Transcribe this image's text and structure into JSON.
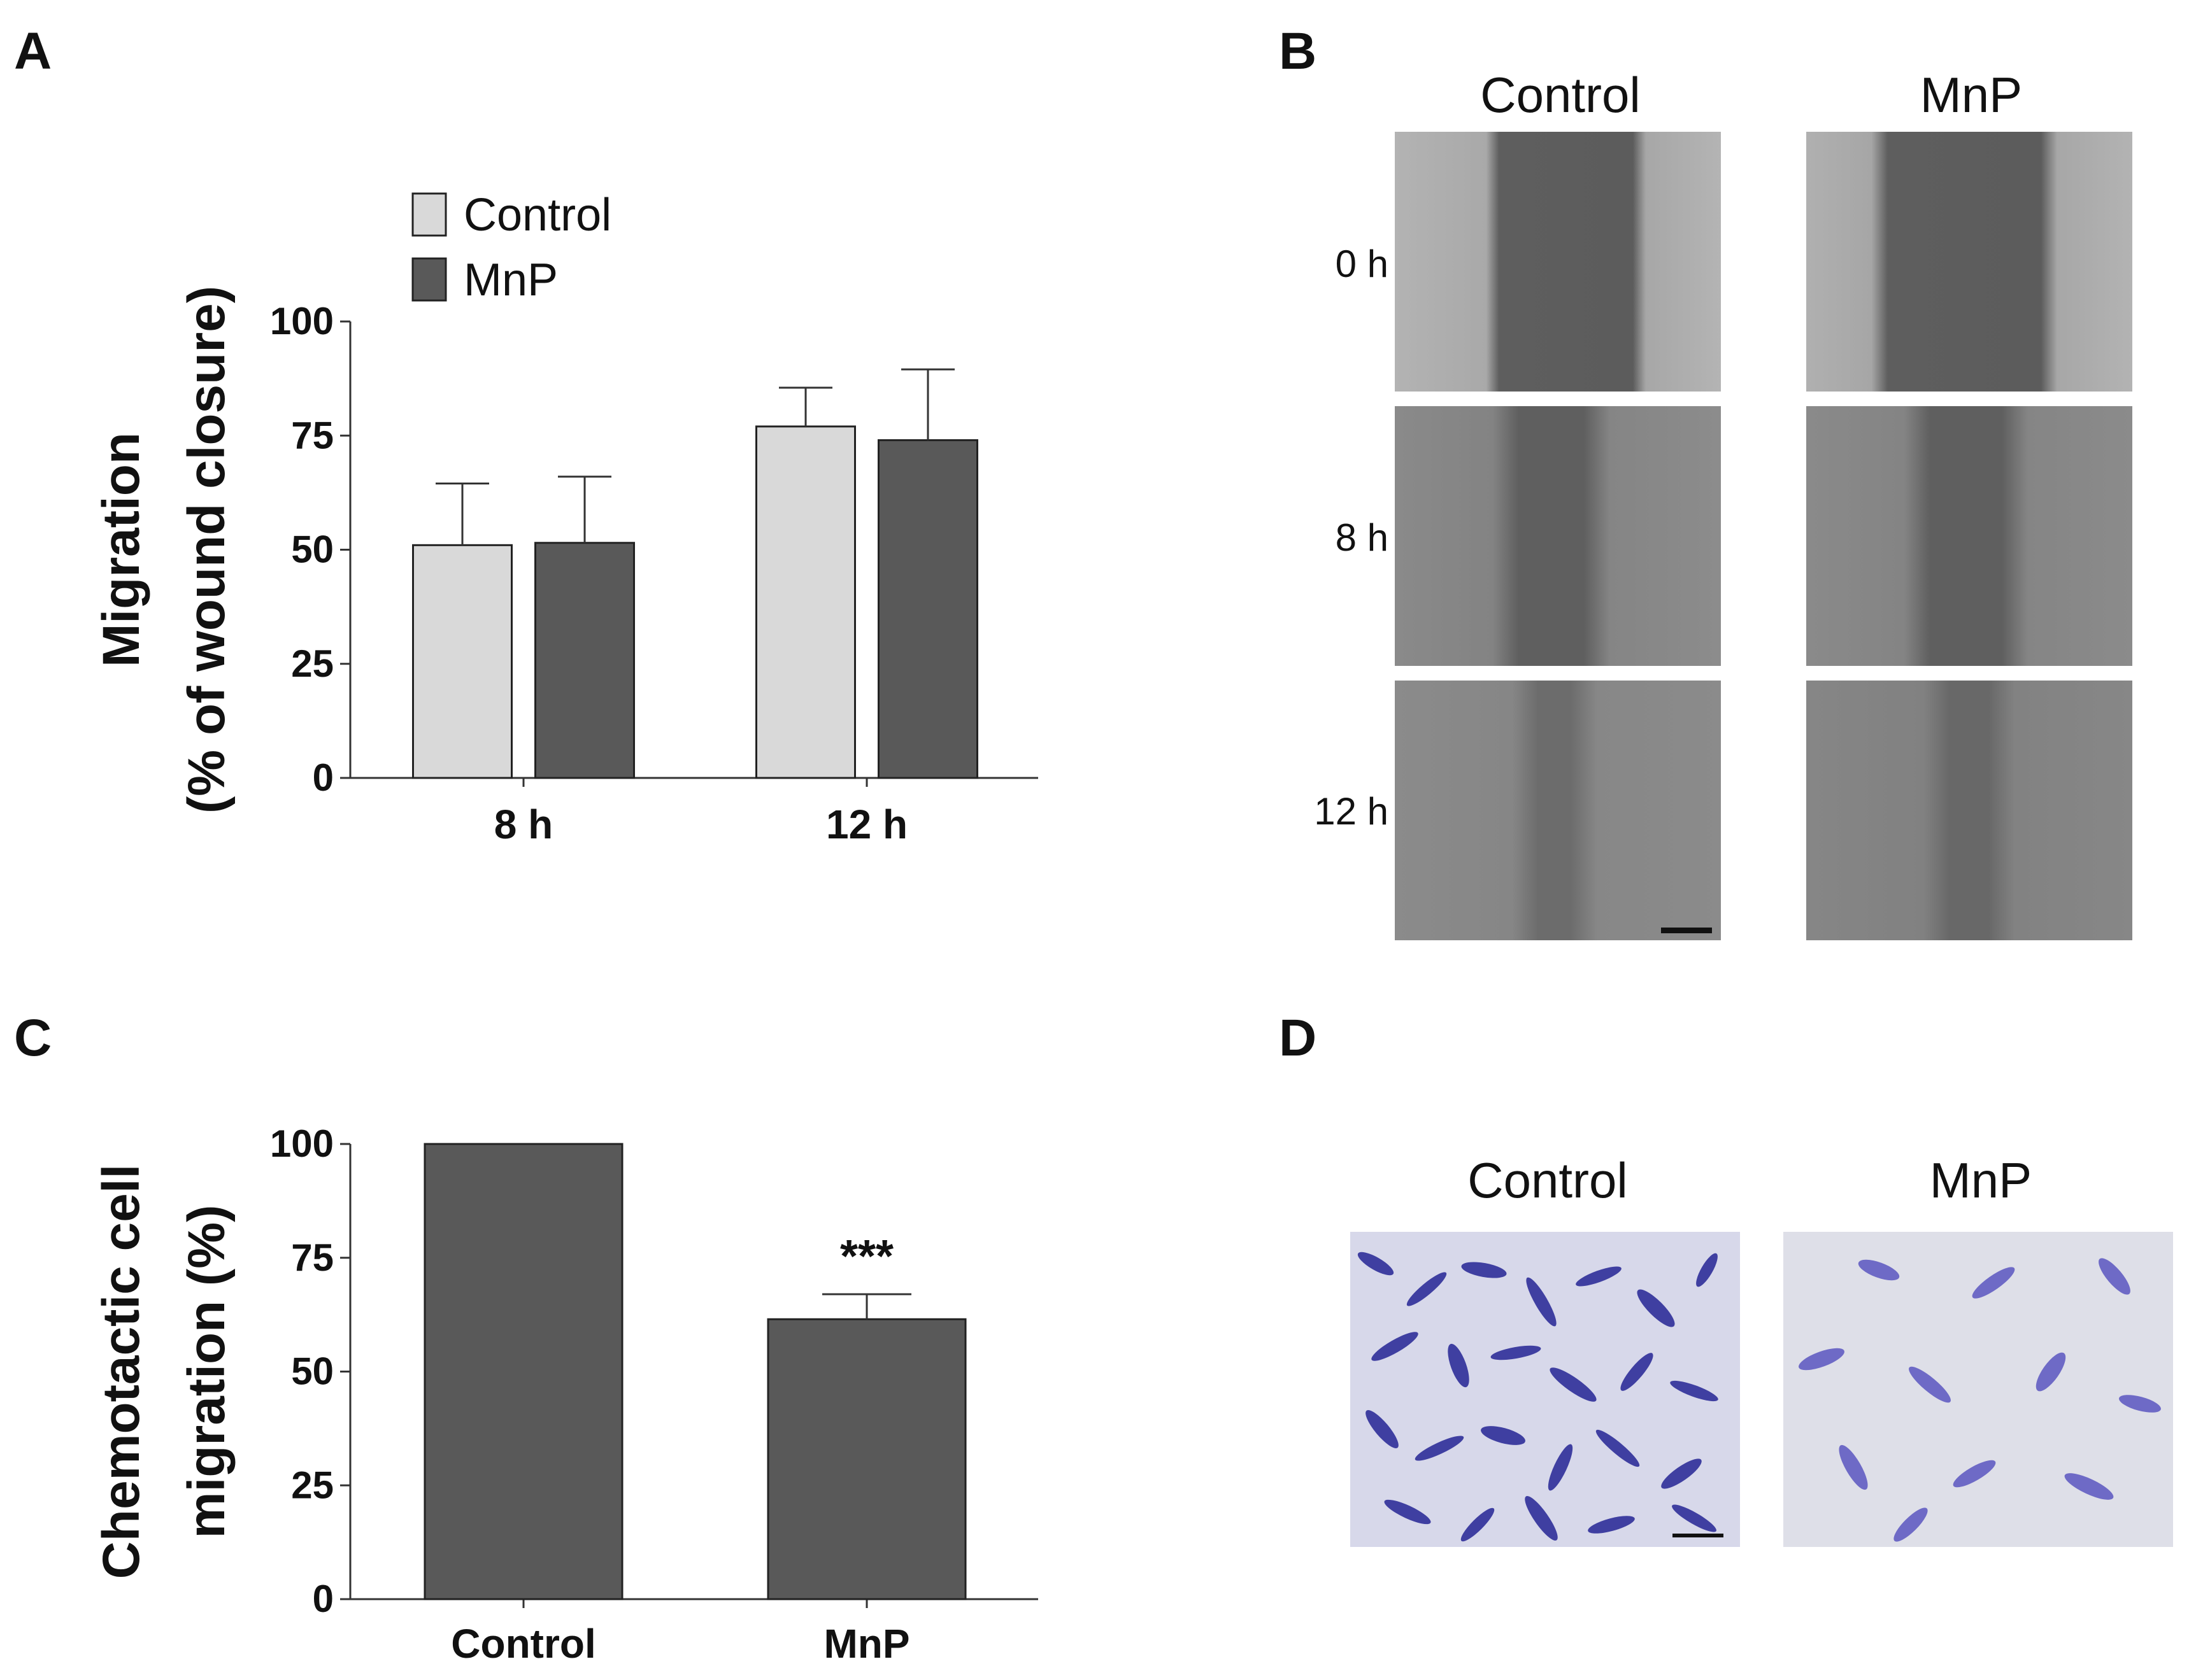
{
  "panels": {
    "a": "A",
    "b": "B",
    "c": "C",
    "d": "D"
  },
  "chart_data": [
    {
      "type": "bar",
      "panel": "A",
      "categories": [
        "8 h",
        "12 h"
      ],
      "series": [
        {
          "name": "Control",
          "values": [
            51,
            77
          ],
          "errors": [
            13.5,
            8.5
          ],
          "color": "#d9d9d9"
        },
        {
          "name": "MnP",
          "values": [
            51.5,
            74
          ],
          "errors": [
            14.5,
            15.5
          ],
          "color": "#595959"
        }
      ],
      "ylabel_lines": [
        "Migration",
        "(% of wound closure)"
      ],
      "yticks": [
        0,
        25,
        50,
        75,
        100
      ],
      "ylim": [
        0,
        100
      ],
      "legend_position": "top-left",
      "grid": false
    },
    {
      "type": "bar",
      "panel": "C",
      "categories": [
        "Control",
        "MnP"
      ],
      "values": [
        100,
        61.5
      ],
      "errors": [
        0,
        5.5
      ],
      "color": "#595959",
      "annotations": [
        "",
        "***"
      ],
      "ylabel_lines": [
        "Chemotactic cell",
        "migration (%)"
      ],
      "yticks": [
        0,
        25,
        50,
        75,
        100
      ],
      "ylim": [
        0,
        100
      ],
      "grid": false
    }
  ],
  "panel_b": {
    "columns": [
      "Control",
      "MnP"
    ],
    "rows": [
      "0 h",
      "8 h",
      "12 h"
    ]
  },
  "panel_d": {
    "columns": [
      "Control",
      "MnP"
    ]
  }
}
